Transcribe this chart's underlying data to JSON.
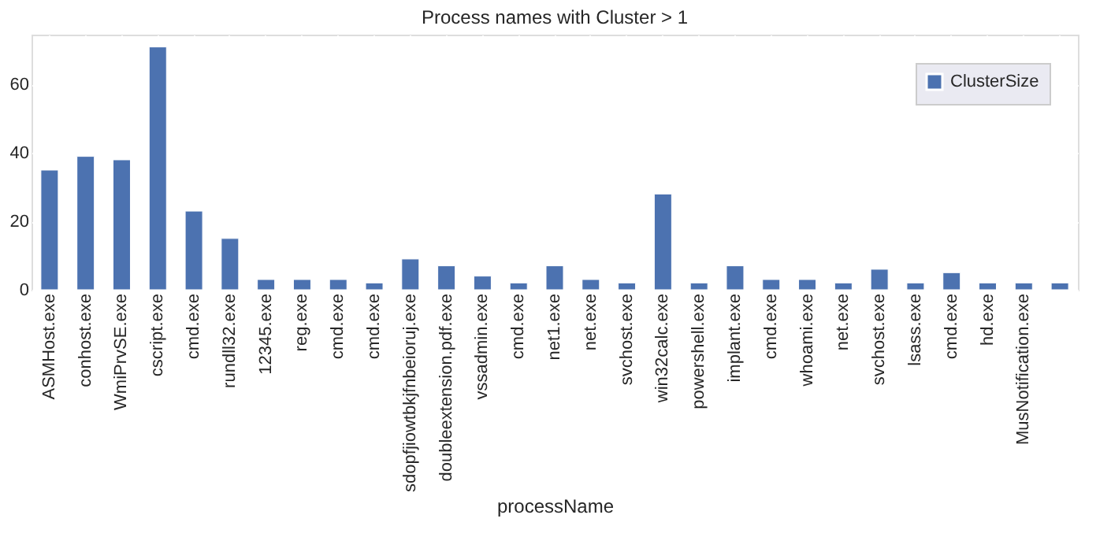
{
  "chart_data": {
    "type": "bar",
    "title": "Process names with Cluster > 1",
    "xlabel": "processName",
    "categories": [
      "ASMHost.exe",
      "conhost.exe",
      "WmiPrvSE.exe",
      "cscript.exe",
      "cmd.exe",
      "rundll32.exe",
      "12345.exe",
      "reg.exe",
      "cmd.exe",
      "cmd.exe",
      "sdopfjiowtbkjfnbeioruj.exe",
      "doubleextension.pdf.exe",
      "vssadmin.exe",
      "cmd.exe",
      "net1.exe",
      "net.exe",
      "svchost.exe",
      "win32calc.exe",
      "powershell.exe",
      "implant.exe",
      "cmd.exe",
      "whoami.exe",
      "net.exe",
      "svchost.exe",
      "lsass.exe",
      "cmd.exe",
      "hd.exe",
      "MusNotification.exe",
      null
    ],
    "series": [
      {
        "name": "ClusterSize",
        "color": "#4c72b0",
        "values": [
          35,
          39,
          38,
          71,
          23,
          15,
          3,
          3,
          3,
          2,
          9,
          7,
          4,
          2,
          7,
          3,
          2,
          28,
          2,
          7,
          3,
          3,
          2,
          6,
          2,
          5,
          2,
          2,
          2
        ]
      }
    ],
    "ylim": [
      0,
      74.6
    ],
    "yticks": [
      0,
      20,
      40,
      60
    ],
    "grid": true,
    "legend": "top right"
  }
}
